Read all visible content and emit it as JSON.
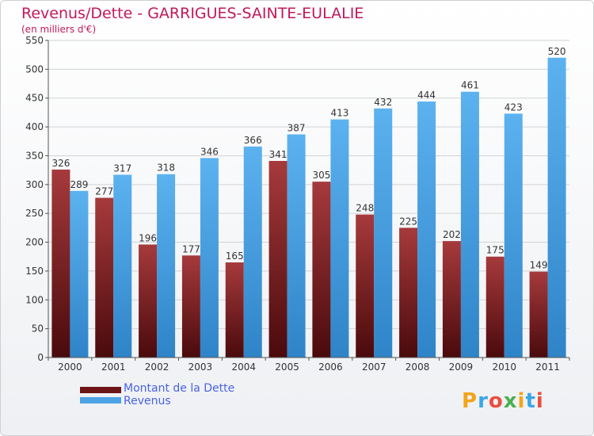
{
  "title": "Revenus/Dette - GARRIGUES-SAINTE-EULALIE",
  "subtitle": "(en milliers d'€)",
  "logo_text": "Proxiti",
  "colors": {
    "title": "#c2185b",
    "debt": "#7a1b1d",
    "revenue": "#4da3e3",
    "legend_text": "#4a63e0"
  },
  "chart_data": {
    "type": "bar",
    "categories": [
      "2000",
      "2001",
      "2002",
      "2003",
      "2004",
      "2005",
      "2006",
      "2007",
      "2008",
      "2009",
      "2010",
      "2011"
    ],
    "series": [
      {
        "name": "Montant de la Dette",
        "values": [
          326,
          277,
          196,
          177,
          165,
          341,
          305,
          248,
          225,
          202,
          175,
          149
        ]
      },
      {
        "name": "Revenus",
        "values": [
          289,
          317,
          318,
          346,
          366,
          387,
          413,
          432,
          444,
          461,
          423,
          520
        ]
      }
    ],
    "ylim": [
      0,
      550
    ],
    "yticks": [
      0,
      50,
      100,
      150,
      200,
      250,
      300,
      350,
      400,
      450,
      500,
      550
    ],
    "grid": true,
    "legend_position": "bottom-left"
  }
}
